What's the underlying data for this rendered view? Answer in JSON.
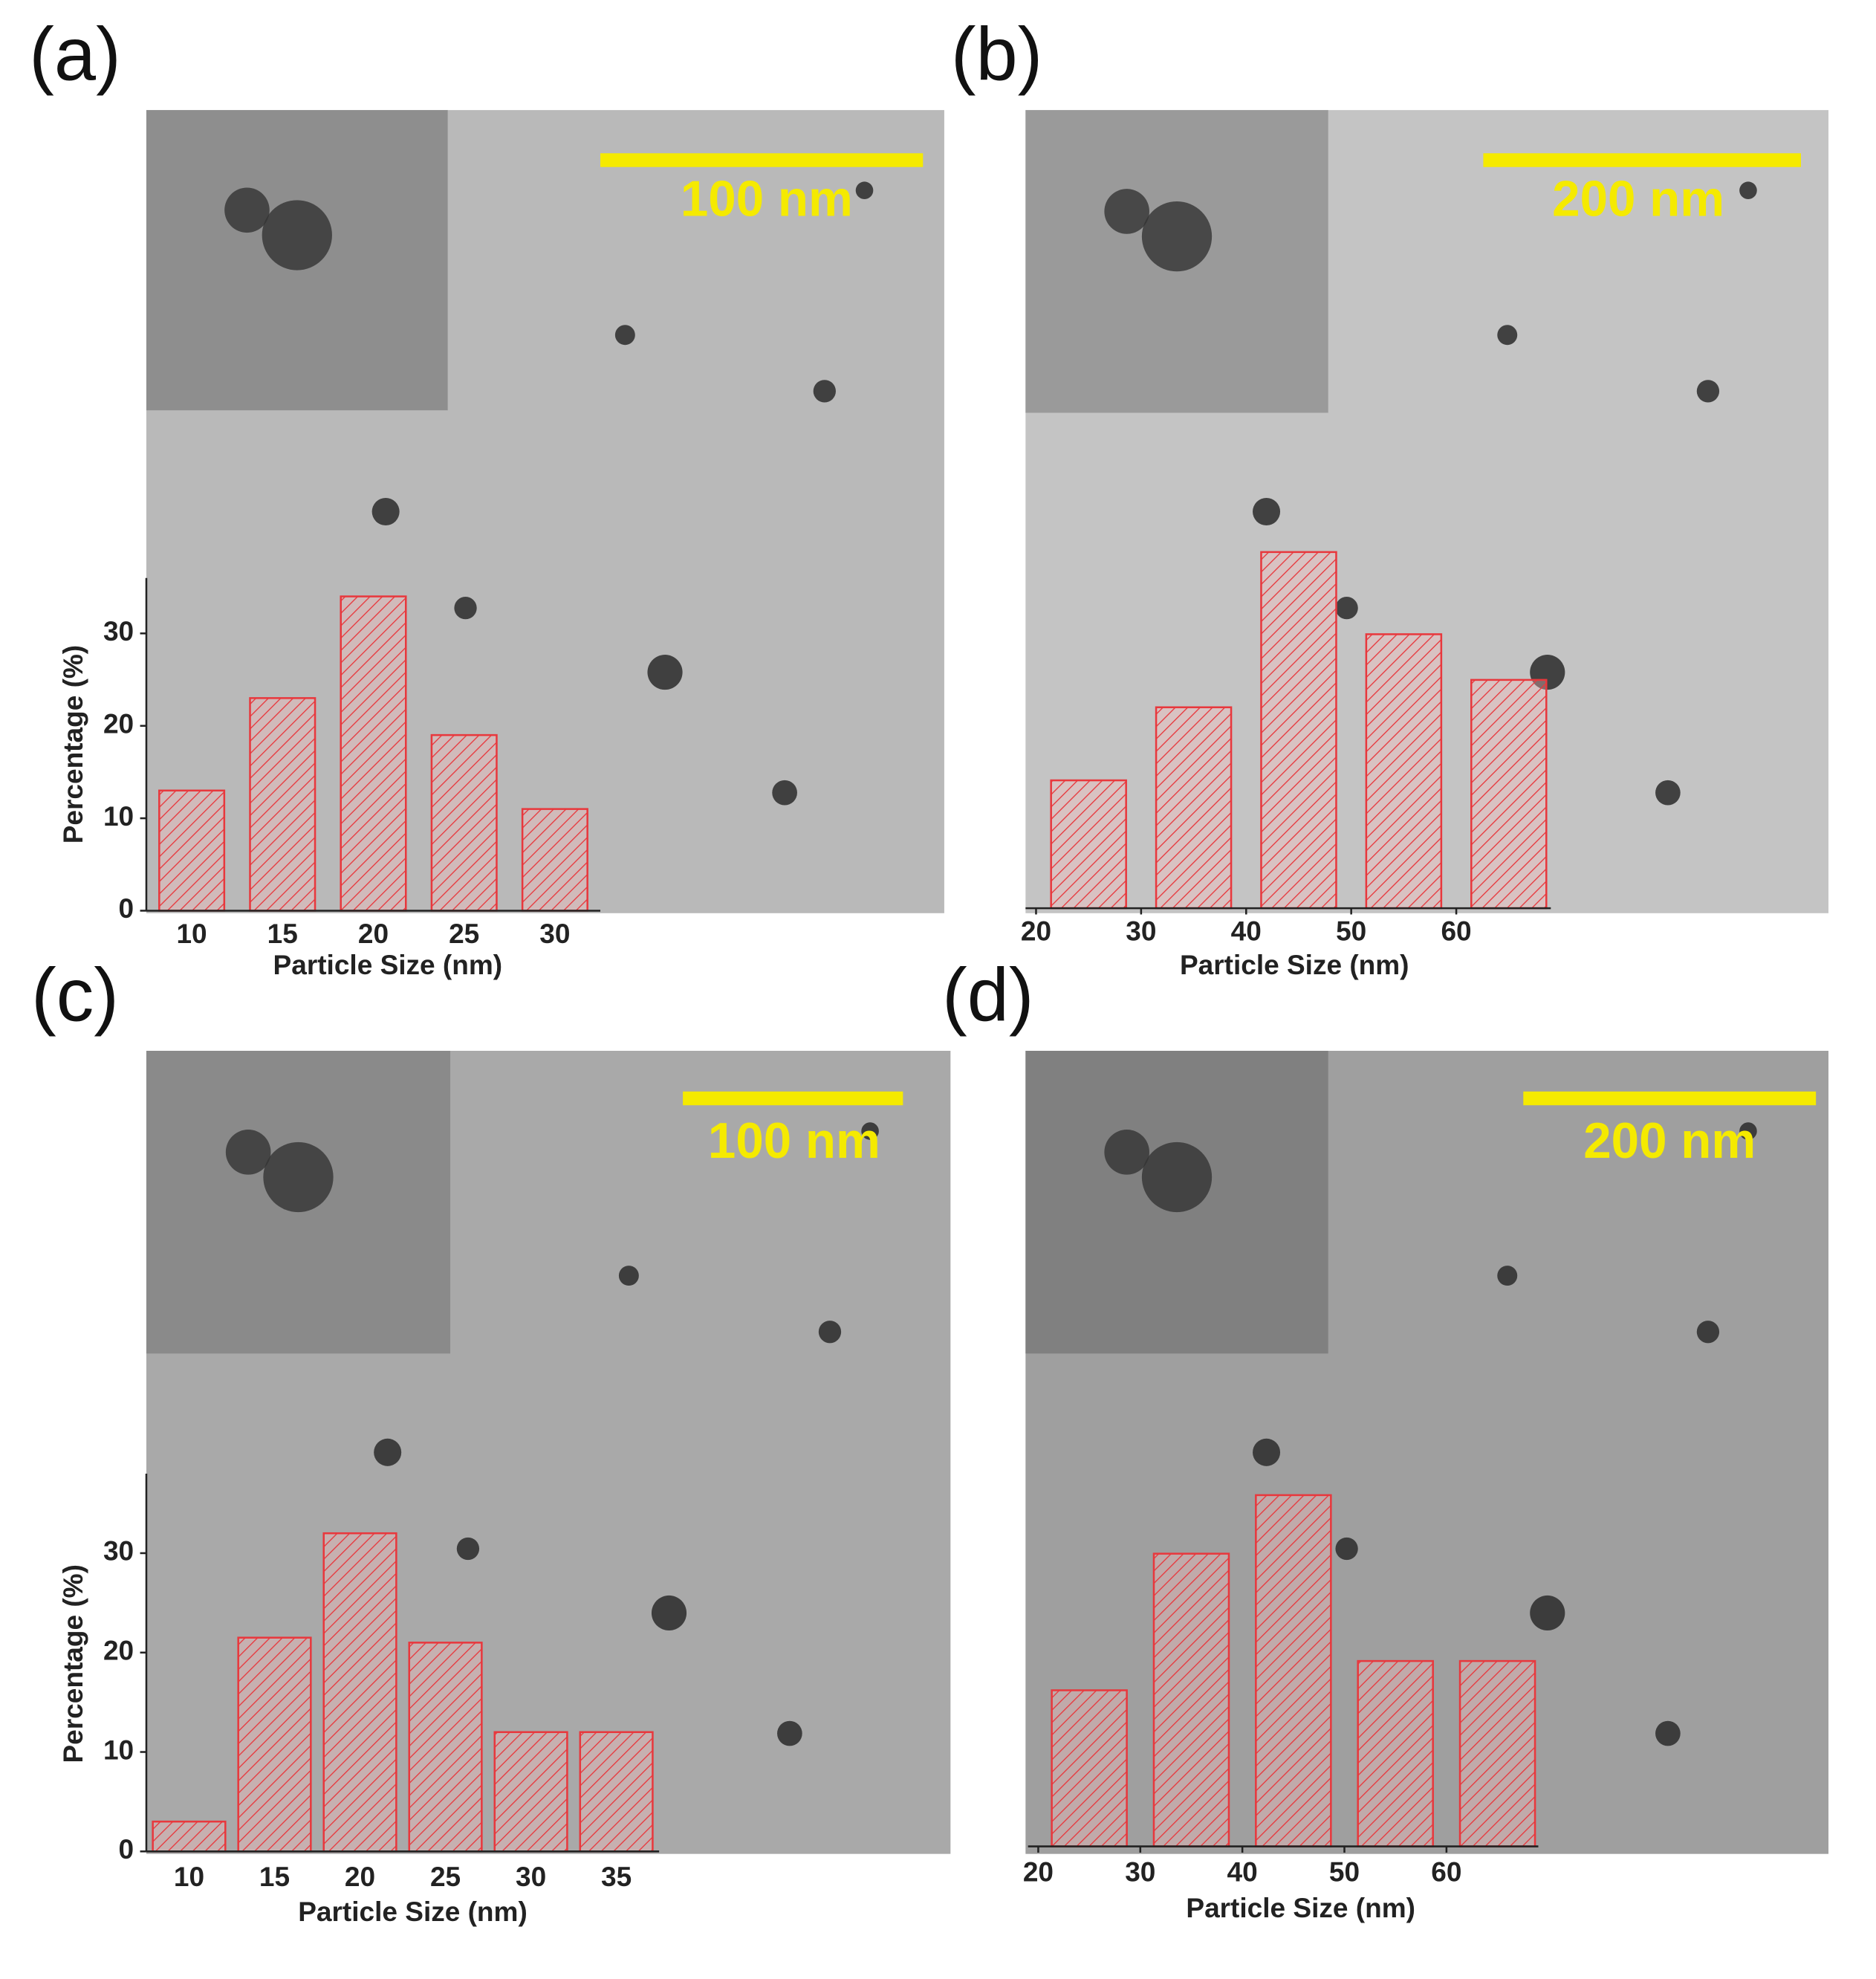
{
  "chart_data": [
    {
      "type": "bar",
      "label": "(a)",
      "scale_bar": "100 nm",
      "x_label": "Particle Size (nm)",
      "y_label": "Percentage (%)",
      "categories": [
        10,
        15,
        20,
        25,
        30
      ],
      "values": [
        13,
        23,
        34,
        19,
        11
      ],
      "color": "#e8383d",
      "ylim": [
        0,
        36
      ],
      "yticks": [
        0,
        10,
        20,
        30
      ]
    },
    {
      "type": "bar",
      "label": "(b)",
      "scale_bar": "200 nm",
      "x_label": "Particle Size (nm)",
      "x": [
        25,
        35,
        45,
        55,
        65
      ],
      "values": [
        14,
        22,
        39,
        30,
        25
      ],
      "color": "#e8383d",
      "xlim": [
        19,
        69
      ],
      "xticks": [
        20,
        30,
        40,
        50,
        60
      ]
    },
    {
      "type": "bar",
      "label": "(c)",
      "scale_bar": "100 nm",
      "x_label": "Particle Size (nm)",
      "y_label": "Percentage (%)",
      "categories": [
        10,
        15,
        20,
        25,
        30,
        35
      ],
      "values": [
        3,
        21.5,
        32,
        21,
        12,
        12
      ],
      "color": "#e8383d",
      "ylim": [
        0,
        38
      ],
      "yticks": [
        0,
        10,
        20,
        30
      ]
    },
    {
      "type": "bar",
      "label": "(d)",
      "scale_bar": "200 nm",
      "x_label": "Particle Size (nm)",
      "x": [
        25,
        35,
        45,
        55,
        65
      ],
      "values": [
        16,
        30,
        36,
        19,
        19
      ],
      "color": "#e8383d",
      "xlim": [
        19,
        69
      ],
      "xticks": [
        20,
        30,
        40,
        50,
        60
      ]
    }
  ]
}
